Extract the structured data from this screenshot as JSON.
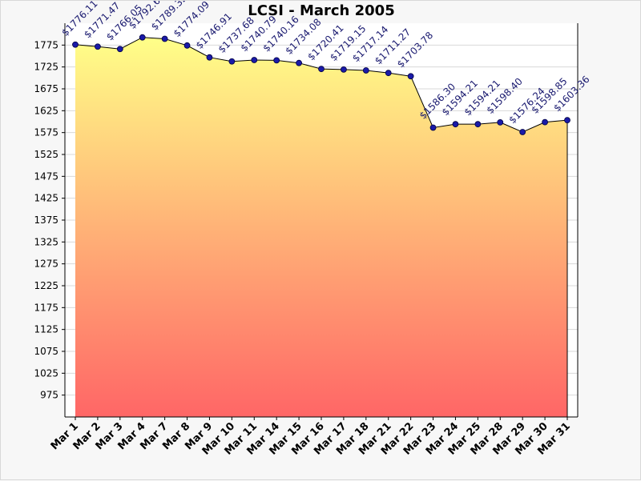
{
  "chart_data": {
    "type": "area",
    "title": "LCSI - March 2005",
    "xlabel": "",
    "ylabel": "",
    "categories": [
      "Mar 1",
      "Mar 2",
      "Mar 3",
      "Mar 4",
      "Mar 7",
      "Mar 8",
      "Mar 9",
      "Mar 10",
      "Mar 11",
      "Mar 14",
      "Mar 15",
      "Mar 16",
      "Mar 17",
      "Mar 18",
      "Mar 21",
      "Mar 22",
      "Mar 23",
      "Mar 24",
      "Mar 25",
      "Mar 28",
      "Mar 29",
      "Mar 30",
      "Mar 31"
    ],
    "values": [
      1776.11,
      1771.47,
      1766.05,
      1792.6,
      1789.32,
      1774.09,
      1746.91,
      1737.68,
      1740.79,
      1740.16,
      1734.08,
      1720.41,
      1719.15,
      1717.14,
      1711.27,
      1703.78,
      1586.3,
      1594.21,
      1594.21,
      1598.4,
      1576.24,
      1598.85,
      1603.36
    ],
    "data_labels": [
      "$1776.11",
      "$1771.47",
      "$1766.05",
      "$1792.60",
      "$1789.32",
      "$1774.09",
      "$1746.91",
      "$1737.68",
      "$1740.79",
      "$1740.16",
      "$1734.08",
      "$1720.41",
      "$1719.15",
      "$1717.14",
      "$1711.27",
      "$1703.78",
      "$1586.30",
      "$1594.21",
      "$1594.21",
      "$1598.40",
      "$1576.24",
      "$1598.85",
      "$1603.36"
    ],
    "y_ticks": [
      975,
      1025,
      1075,
      1125,
      1175,
      1225,
      1275,
      1325,
      1375,
      1425,
      1475,
      1525,
      1575,
      1625,
      1675,
      1725,
      1775
    ],
    "ylim": [
      925,
      1825
    ],
    "grid": true,
    "legend": "none",
    "colors": {
      "fill_top": "#ffff88",
      "fill_bottom": "#ff6666",
      "line": "#000000",
      "marker": "#1a1aa8",
      "label": "#1a1a70",
      "grid": "#d8d8d8",
      "plot_bg": "#ffffff"
    }
  }
}
